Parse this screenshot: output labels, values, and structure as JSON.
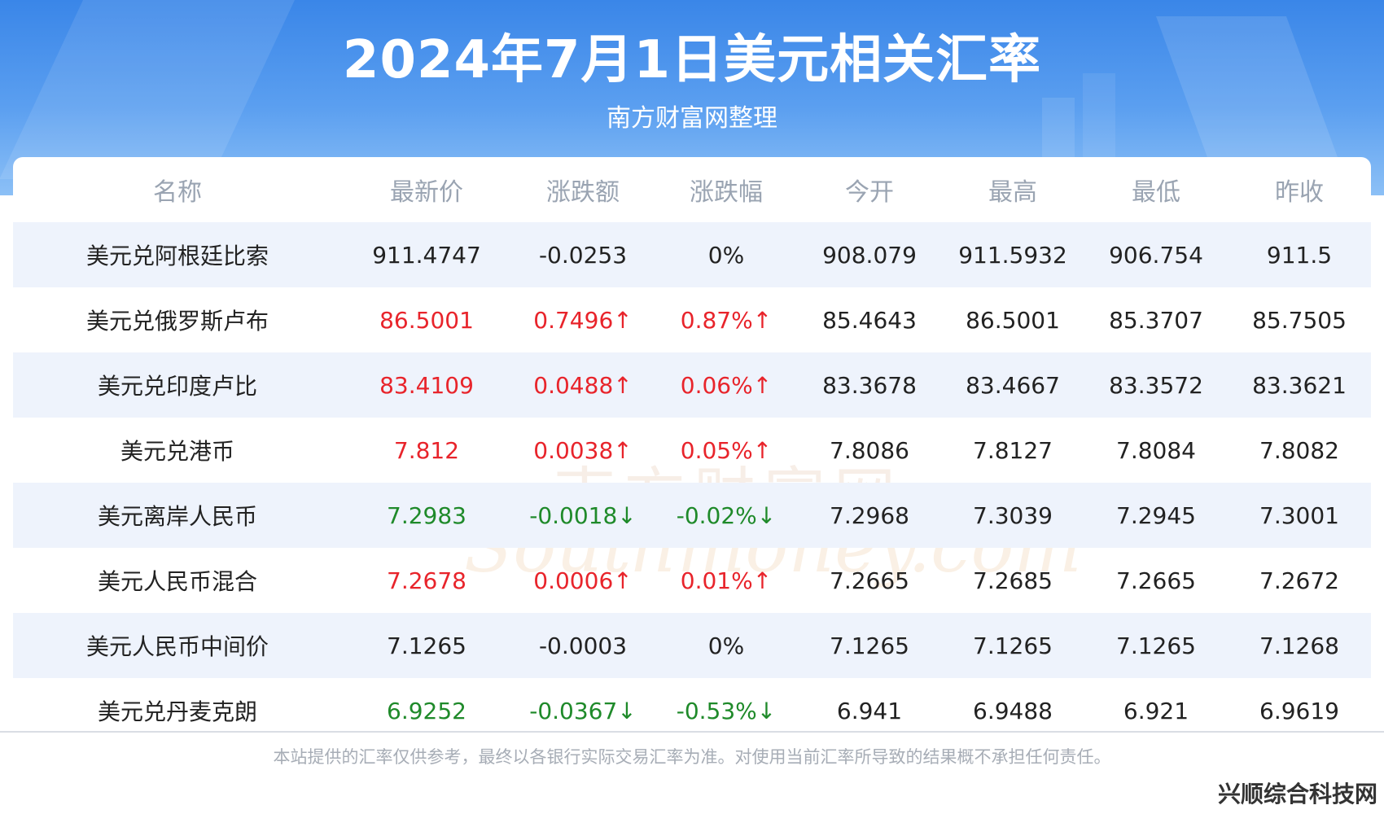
{
  "header": {
    "title": "2024年7月1日美元相关汇率",
    "subtitle": "南方财富网整理"
  },
  "table": {
    "columns": [
      "名称",
      "最新价",
      "涨跌额",
      "涨跌幅",
      "今开",
      "最高",
      "最低",
      "昨收"
    ],
    "rows": [
      {
        "name": "美元兑阿根廷比索",
        "latest": "911.4747",
        "change": "-0.0253",
        "pct": "0%",
        "open": "908.079",
        "high": "911.5932",
        "low": "906.754",
        "prev": "911.5",
        "trend": "flat"
      },
      {
        "name": "美元兑俄罗斯卢布",
        "latest": "86.5001",
        "change": "0.7496↑",
        "pct": "0.87%↑",
        "open": "85.4643",
        "high": "86.5001",
        "low": "85.3707",
        "prev": "85.7505",
        "trend": "up"
      },
      {
        "name": "美元兑印度卢比",
        "latest": "83.4109",
        "change": "0.0488↑",
        "pct": "0.06%↑",
        "open": "83.3678",
        "high": "83.4667",
        "low": "83.3572",
        "prev": "83.3621",
        "trend": "up"
      },
      {
        "name": "美元兑港币",
        "latest": "7.812",
        "change": "0.0038↑",
        "pct": "0.05%↑",
        "open": "7.8086",
        "high": "7.8127",
        "low": "7.8084",
        "prev": "7.8082",
        "trend": "up"
      },
      {
        "name": "美元离岸人民币",
        "latest": "7.2983",
        "change": "-0.0018↓",
        "pct": "-0.02%↓",
        "open": "7.2968",
        "high": "7.3039",
        "low": "7.2945",
        "prev": "7.3001",
        "trend": "down"
      },
      {
        "name": "美元人民币混合",
        "latest": "7.2678",
        "change": "0.0006↑",
        "pct": "0.01%↑",
        "open": "7.2665",
        "high": "7.2685",
        "low": "7.2665",
        "prev": "7.2672",
        "trend": "up"
      },
      {
        "name": "美元人民币中间价",
        "latest": "7.1265",
        "change": "-0.0003",
        "pct": "0%",
        "open": "7.1265",
        "high": "7.1265",
        "low": "7.1265",
        "prev": "7.1268",
        "trend": "flat"
      },
      {
        "name": "美元兑丹麦克朗",
        "latest": "6.9252",
        "change": "-0.0367↓",
        "pct": "-0.53%↓",
        "open": "6.941",
        "high": "6.9488",
        "low": "6.921",
        "prev": "6.9619",
        "trend": "down"
      }
    ]
  },
  "footer": {
    "disclaimer": "本站提供的汇率仅供参考，最终以各银行实际交易汇率为准。对使用当前汇率所导致的结果概不承担任何责任。"
  },
  "watermark": {
    "cn": "南方财富网",
    "en": "Southmoney.com"
  },
  "corner_watermark": "兴顺综合科技网",
  "colors": {
    "header_blue": "#3a86e8",
    "up_red": "#e8242b",
    "down_green": "#1f8a2a",
    "stripe": "#eef3fc"
  }
}
